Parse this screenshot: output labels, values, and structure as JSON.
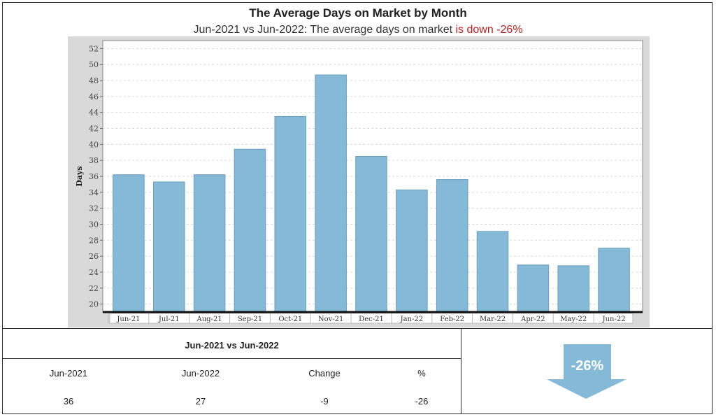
{
  "header": {
    "title": "The Average Days on Market by Month",
    "subtitle_prefix": "Jun-2021 vs Jun-2022: The average days on market ",
    "subtitle_highlight": "is down -26%"
  },
  "chart_data": {
    "type": "bar",
    "categories": [
      "Jun-21",
      "Jul-21",
      "Aug-21",
      "Sep-21",
      "Oct-21",
      "Nov-21",
      "Dec-21",
      "Jan-22",
      "Feb-22",
      "Mar-22",
      "Apr-22",
      "May-22",
      "Jun-22"
    ],
    "values": [
      36.2,
      35.3,
      36.2,
      39.4,
      43.5,
      48.7,
      38.5,
      34.3,
      35.6,
      29.1,
      24.9,
      24.8,
      27.0
    ],
    "ylabel": "Days",
    "ylim": [
      19,
      53
    ],
    "yticks": [
      20,
      22,
      24,
      26,
      28,
      30,
      32,
      34,
      36,
      38,
      40,
      42,
      44,
      46,
      48,
      50,
      52
    ],
    "grid": true,
    "bar_color": "#84bad7"
  },
  "table": {
    "title": "Jun-2021 vs Jun-2022",
    "headers": [
      "Jun-2021",
      "Jun-2022",
      "Change",
      "%"
    ],
    "values": [
      "36",
      "27",
      "-9",
      "-26"
    ]
  },
  "indicator": {
    "label": "-26%",
    "color": "#84bad7",
    "icon": "down-arrow-icon"
  }
}
